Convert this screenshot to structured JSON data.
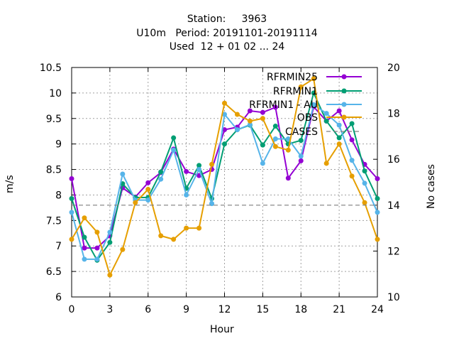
{
  "chart_data": {
    "type": "line",
    "title_lines": [
      "Station:     3963",
      "U10m   Period: 20191101-20191114",
      "Used  12 + 01 02 ... 24"
    ],
    "xlabel": "Hour",
    "ylabel": "m/s",
    "y2label": "No cases",
    "xlim": [
      0,
      24
    ],
    "ylim": [
      6,
      10.5
    ],
    "y2lim": [
      10,
      20
    ],
    "x_ticks": [
      "0",
      "3",
      "6",
      "9",
      "12",
      "15",
      "18",
      "21",
      "24"
    ],
    "y_ticks": [
      "6",
      "6.5",
      "7",
      "7.5",
      "8",
      "8.5",
      "9",
      "9.5",
      "10",
      "10.5"
    ],
    "y2_ticks": [
      "10",
      "12",
      "14",
      "16",
      "18",
      "20"
    ],
    "grid": true,
    "legend_position": "top-right",
    "x": [
      0,
      1,
      2,
      3,
      4,
      5,
      6,
      7,
      8,
      9,
      10,
      11,
      12,
      13,
      14,
      15,
      16,
      17,
      18,
      19,
      20,
      21,
      22,
      23,
      24
    ],
    "series": [
      {
        "name": "RFRMIN25",
        "color": "#9400d3",
        "marker": "circle",
        "axis": "y",
        "values": [
          8.32,
          6.96,
          6.96,
          7.2,
          8.14,
          7.96,
          8.24,
          8.44,
          8.9,
          8.46,
          8.38,
          8.5,
          9.28,
          9.33,
          9.65,
          9.62,
          9.72,
          8.33,
          8.67,
          9.73,
          9.45,
          9.65,
          9.08,
          8.6,
          8.32
        ]
      },
      {
        "name": "RFRMIN1",
        "color": "#009e73",
        "marker": "circle",
        "axis": "y",
        "values": [
          7.93,
          7.17,
          6.72,
          7.07,
          8.22,
          7.95,
          7.95,
          8.45,
          9.12,
          8.13,
          8.58,
          7.93,
          9.0,
          9.28,
          9.37,
          8.98,
          9.35,
          9.0,
          9.07,
          10.0,
          9.45,
          9.12,
          9.4,
          8.47,
          7.93
        ]
      },
      {
        "name": "RFRMIN1 - AU",
        "color": "#56b4e9",
        "marker": "circle",
        "axis": "y",
        "values": [
          7.66,
          6.74,
          6.74,
          7.27,
          8.41,
          7.9,
          7.9,
          8.31,
          8.88,
          8.0,
          8.5,
          7.83,
          9.58,
          9.28,
          9.38,
          8.62,
          9.1,
          9.1,
          8.76,
          9.77,
          9.6,
          9.37,
          8.68,
          8.23,
          7.66
        ]
      },
      {
        "name": "OBS",
        "color": "#e69f00",
        "marker": "circle",
        "axis": "y",
        "values": [
          7.13,
          7.55,
          7.27,
          6.43,
          6.93,
          7.85,
          8.11,
          7.2,
          7.13,
          7.35,
          7.35,
          8.6,
          9.8,
          9.58,
          9.45,
          9.5,
          8.95,
          8.88,
          10.12,
          10.28,
          8.62,
          9.0,
          8.37,
          7.85,
          7.13
        ]
      },
      {
        "name": "CASES",
        "color": "#7f7f7f",
        "dash": true,
        "axis": "y2",
        "values": [
          14,
          14,
          14,
          14,
          14,
          14,
          14,
          14,
          14,
          14,
          14,
          14,
          14,
          14,
          14,
          14,
          14,
          14,
          14,
          14,
          14,
          14,
          14,
          14,
          14
        ]
      }
    ]
  }
}
